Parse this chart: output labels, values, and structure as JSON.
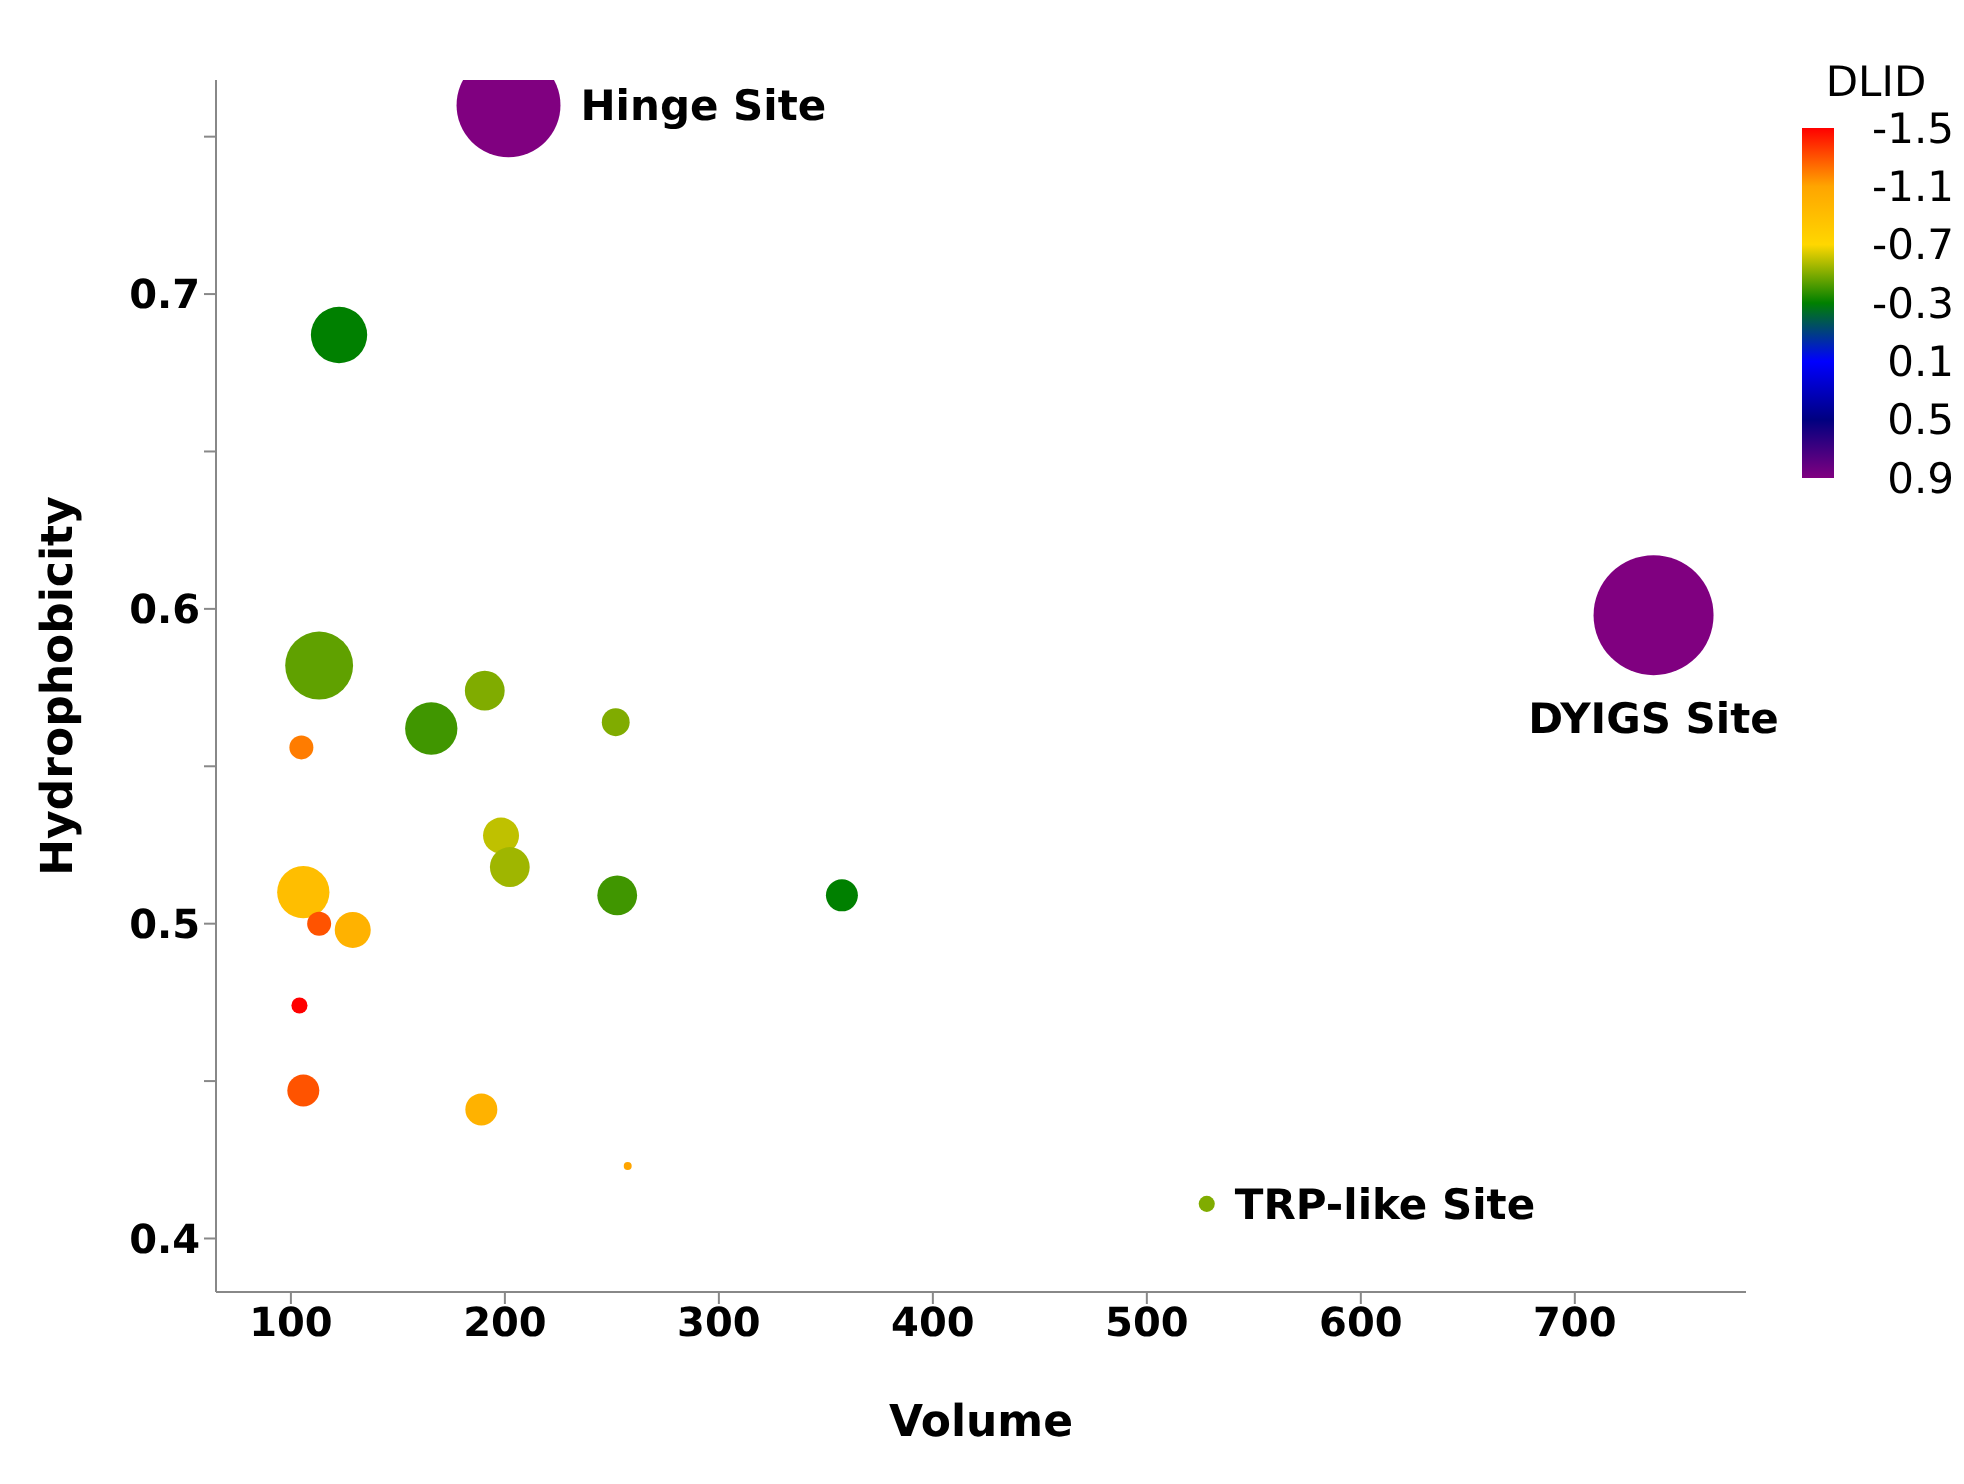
{
  "chart_data": {
    "type": "bubble",
    "xlabel": "Volume",
    "ylabel": "Hydrophobicity",
    "clabel": "DLID",
    "xlim": [
      65,
      780
    ],
    "xticks": [
      100,
      200,
      300,
      400,
      500,
      600,
      700
    ],
    "ylim": [
      0.383,
      0.768
    ],
    "yticks": [
      0.4,
      {
        "value": 0.45,
        "label": null
      },
      0.5,
      {
        "value": 0.55,
        "label": null
      },
      0.6,
      {
        "value": 0.65,
        "label": null
      },
      0.7,
      {
        "value": 0.75,
        "label": null
      }
    ],
    "clim": [
      -1.5,
      0.9
    ],
    "cticks": [
      -1.5,
      -1.1,
      -0.7,
      -0.3,
      0.1,
      0.5,
      0.9
    ],
    "x": [
      201.7,
      736.8,
      528,
      122.5,
      113.2,
      190.6,
      165.6,
      251.8,
      104.9,
      198.2,
      202.3,
      105.8,
      252.5,
      357.5,
      113.2,
      128.9,
      104,
      105.8,
      189,
      257.4
    ],
    "values": [
      0.76,
      0.598,
      0.411,
      0.687,
      0.582,
      0.574,
      0.562,
      0.564,
      0.556,
      0.528,
      0.518,
      0.51,
      0.509,
      0.509,
      0.5,
      0.498,
      0.474,
      0.447,
      0.441,
      0.423
    ],
    "sizes": [
      0.75,
      1,
      0.018,
      0.22,
      0.32,
      0.11,
      0.19,
      0.054,
      0.04,
      0.09,
      0.11,
      0.19,
      0.11,
      0.071,
      0.04,
      0.09,
      0.018,
      0.071,
      0.071,
      0.0044
    ],
    "cvalues": [
      0.9,
      0.9,
      -0.5,
      -0.3,
      -0.45,
      -0.5,
      -0.4,
      -0.5,
      -1.2,
      -0.6,
      -0.55,
      -0.9,
      -0.4,
      -0.3,
      -1.3,
      -1.0,
      -1.5,
      -1.3,
      -1.0,
      -1.1
    ],
    "annotations": [
      {
        "text": "Hinge Site",
        "x": 201.7,
        "y": 0.76
      },
      {
        "text": "DYIGS Site",
        "x": 736.8,
        "y": 0.598
      },
      {
        "text": "TRP-like Site",
        "x": 528,
        "y": 0.411
      }
    ]
  }
}
